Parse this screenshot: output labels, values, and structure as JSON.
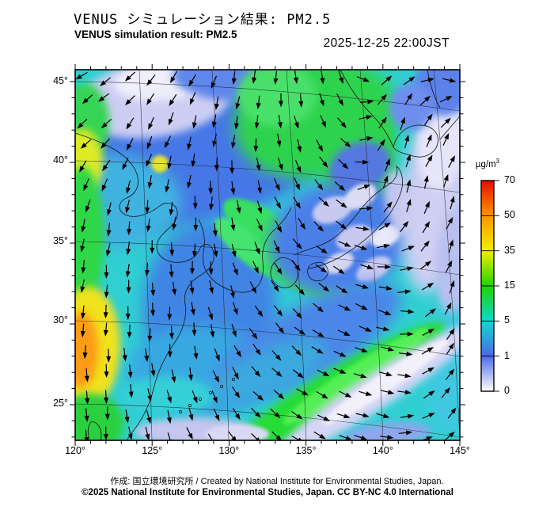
{
  "header": {
    "title_ja": "VENUS シミュレーション結果: PM2.5",
    "title_en": "VENUS simulation result: PM2.5",
    "datetime": "2025-12-25 22:00JST"
  },
  "map": {
    "x_axis": {
      "ticks": [
        "120°",
        "125°",
        "130°",
        "135°",
        "140°",
        "145°"
      ]
    },
    "y_axis": {
      "ticks": [
        "45°",
        "40°",
        "35°",
        "30°",
        "25°"
      ]
    }
  },
  "colorbar": {
    "unit_base": "µg/m",
    "unit_exp": "3",
    "ticks": [
      "70",
      "50",
      "35",
      "15",
      "5",
      "1",
      "0"
    ],
    "stops": [
      {
        "value": 0,
        "color": "#ffffff"
      },
      {
        "value": 1,
        "color": "#4d6ae8"
      },
      {
        "value": 5,
        "color": "#0fd8cf"
      },
      {
        "value": 15,
        "color": "#1fd400"
      },
      {
        "value": 35,
        "color": "#f2ee00"
      },
      {
        "value": 50,
        "color": "#ff9500"
      },
      {
        "value": 70,
        "color": "#e60c00"
      }
    ]
  },
  "wind_field": {
    "note": "arrow direction grid, degrees: 0=east, 90=south(screen-down), 270=north(up)",
    "cols": 7,
    "rows": 7,
    "angles": [
      [
        155,
        135,
        112,
        95,
        80,
        310,
        40
      ],
      [
        140,
        120,
        102,
        88,
        60,
        290,
        305
      ],
      [
        115,
        102,
        94,
        72,
        45,
        282,
        292
      ],
      [
        100,
        95,
        88,
        62,
        35,
        350,
        285
      ],
      [
        95,
        91,
        82,
        55,
        32,
        15,
        288
      ],
      [
        91,
        86,
        74,
        46,
        26,
        10,
        295
      ],
      [
        87,
        79,
        62,
        40,
        22,
        5,
        305
      ]
    ]
  },
  "footer": {
    "line1": "作成: 国立環境研究所 / Created by National Institute for Environmental Studies, Japan.",
    "line2": "©2025 National Institute for Environmental Studies, Japan. CC BY-NC 4.0 International"
  }
}
